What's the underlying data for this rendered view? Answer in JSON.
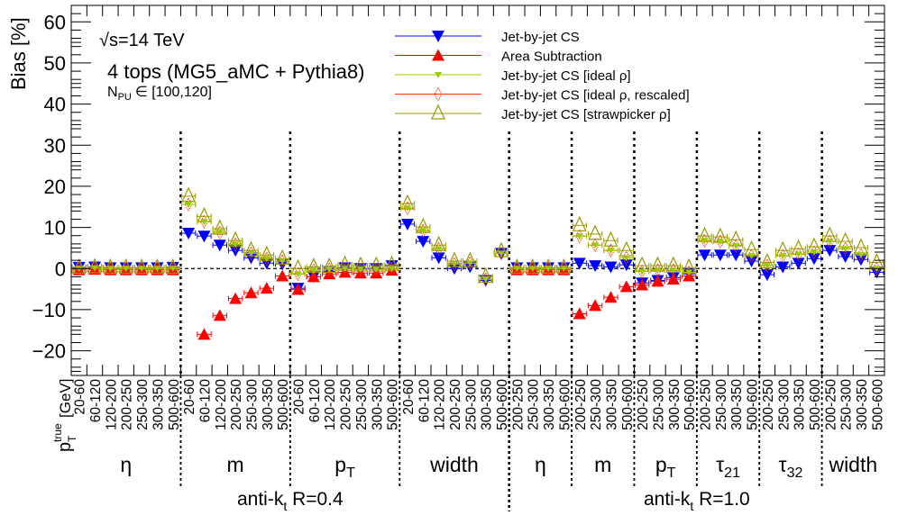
{
  "chart_data": {
    "type": "scatter",
    "title": "",
    "ylabel": "Bias [%]",
    "xlabel_main": "p",
    "xlabel_sub": "T",
    "xlabel_sup": "true",
    "xlabel_unit": "[GeV]",
    "ylim": [
      -26,
      64
    ],
    "yticks": [
      -20,
      -10,
      0,
      10,
      20,
      30,
      40,
      50,
      60
    ],
    "ytick_labels": [
      "−20",
      "−10",
      "0",
      "10",
      "20",
      "30",
      "40",
      "50",
      "60"
    ],
    "grid": false,
    "legend_position": "top-center",
    "annotations": {
      "energy_prefix": "√",
      "energy": "s=14 TeV",
      "process": "4 tops (MG5_aMC + Pythia8)",
      "pileup_N": "N",
      "pileup_sub": "PU",
      "pileup_range": "∈ [100,120]"
    },
    "categories": [
      "20-60",
      "60-120",
      "120-200",
      "200-250",
      "250-300",
      "300-350",
      "500-600",
      "20-60",
      "60-120",
      "120-200",
      "200-250",
      "250-300",
      "300-350",
      "500-600",
      "20-60",
      "60-120",
      "120-200",
      "200-250",
      "250-300",
      "300-350",
      "500-600",
      "20-60",
      "60-120",
      "120-200",
      "200-250",
      "250-300",
      "300-350",
      "500-600",
      "200-250",
      "250-300",
      "300-350",
      "500-600",
      "200-250",
      "250-300",
      "300-350",
      "500-600",
      "200-250",
      "250-300",
      "300-350",
      "500-600",
      "200-250",
      "250-300",
      "300-350",
      "500-600",
      "200-250",
      "250-300",
      "300-350",
      "500-600",
      "200-250",
      "250-300",
      "300-350",
      "500-600"
    ],
    "groups": [
      {
        "label": "η",
        "sub": "",
        "start": 0,
        "n": 7
      },
      {
        "label": "m",
        "sub": "",
        "start": 7,
        "n": 7
      },
      {
        "label": "p",
        "sub": "T",
        "start": 14,
        "n": 7
      },
      {
        "label": "width",
        "sub": "",
        "start": 21,
        "n": 7
      },
      {
        "label": "η",
        "sub": "",
        "start": 28,
        "n": 4
      },
      {
        "label": "m",
        "sub": "",
        "start": 32,
        "n": 4
      },
      {
        "label": "p",
        "sub": "T",
        "start": 36,
        "n": 4
      },
      {
        "label": "τ",
        "sub": "21",
        "start": 40,
        "n": 4
      },
      {
        "label": "τ",
        "sub": "32",
        "start": 44,
        "n": 4
      },
      {
        "label": "width",
        "sub": "",
        "start": 48,
        "n": 4
      }
    ],
    "jet_collections": [
      {
        "label": "anti-k",
        "sub": "t",
        "rest": " R=0.4",
        "start": 0,
        "n": 28
      },
      {
        "label": "anti-k",
        "sub": "t",
        "rest": " R=1.0",
        "start": 28,
        "n": 24
      }
    ],
    "series": [
      {
        "name": "Jet-by-jet CS",
        "color": "#0000ff",
        "marker": "triangle-down-filled",
        "values": [
          0.3,
          0.4,
          0.2,
          0.2,
          0.2,
          0.2,
          0.3,
          8.6,
          7.9,
          5.7,
          4.4,
          2.6,
          1.3,
          1.1,
          -4.8,
          -2.0,
          -0.7,
          0.2,
          0.0,
          0.0,
          0.7,
          10.8,
          6.6,
          2.6,
          0.0,
          0.4,
          -2.9,
          3.7,
          0.2,
          0.2,
          0.2,
          0.2,
          1.3,
          0.7,
          0.4,
          0.9,
          -3.5,
          -2.9,
          -2.2,
          -1.3,
          3.3,
          3.3,
          3.3,
          1.8,
          -1.5,
          0.4,
          1.3,
          2.4,
          4.4,
          2.9,
          2.2,
          -0.9
        ]
      },
      {
        "name": "Area Subtraction",
        "color": "#ff0000",
        "marker": "triangle-up-filled",
        "values": [
          -0.3,
          -0.2,
          -0.3,
          -0.3,
          -0.3,
          -0.3,
          -0.3,
          null,
          -16.0,
          -11.4,
          -7.3,
          -5.9,
          -4.8,
          -1.8,
          -5.1,
          -2.0,
          -1.3,
          -0.9,
          -1.1,
          -1.1,
          -0.4,
          null,
          null,
          null,
          null,
          null,
          null,
          null,
          -0.3,
          -0.3,
          -0.3,
          -0.3,
          -11.0,
          -9.0,
          -7.0,
          -4.4,
          -4.0,
          -3.1,
          -2.6,
          -1.8,
          null,
          null,
          null,
          null,
          null,
          null,
          null,
          null,
          null,
          null,
          null,
          null
        ]
      },
      {
        "name": "Jet-by-jet CS [ideal   ρ]",
        "color": "#99cc00",
        "marker": "triangle-down-small",
        "values": [
          0.0,
          0.1,
          0.0,
          0.0,
          0.0,
          0.0,
          0.0,
          15.6,
          11.4,
          8.8,
          5.9,
          3.7,
          2.4,
          1.8,
          -1.3,
          -0.4,
          -0.2,
          0.0,
          -0.2,
          -0.2,
          0.0,
          14.7,
          9.2,
          4.8,
          1.1,
          1.3,
          -2.6,
          3.7,
          0.0,
          0.0,
          0.0,
          0.0,
          7.9,
          5.7,
          4.4,
          2.6,
          -0.7,
          -0.4,
          -0.4,
          -0.9,
          6.8,
          6.6,
          5.5,
          3.1,
          0.7,
          3.1,
          3.5,
          4.0,
          6.6,
          4.8,
          3.3,
          0.0
        ]
      },
      {
        "name": "Jet-by-jet CS [ideal   ρ, rescaled]",
        "color": "#ff3300",
        "marker": "diamond-open",
        "values": [
          0.0,
          0.1,
          0.0,
          0.0,
          0.0,
          0.0,
          0.0,
          15.6,
          11.4,
          8.8,
          5.9,
          3.7,
          2.4,
          1.8,
          -1.3,
          -0.4,
          -0.2,
          0.0,
          -0.2,
          -0.2,
          0.0,
          14.7,
          9.2,
          4.8,
          1.1,
          1.3,
          -2.6,
          3.7,
          0.0,
          0.0,
          0.0,
          0.0,
          7.9,
          5.7,
          4.4,
          2.6,
          -0.7,
          -0.4,
          -0.4,
          -0.9,
          6.8,
          6.6,
          5.5,
          3.1,
          0.7,
          3.1,
          3.5,
          4.0,
          6.6,
          4.8,
          3.3,
          0.0
        ]
      },
      {
        "name": "Jet-by-jet CS [strawpicker   ρ]",
        "color": "#999900",
        "marker": "triangle-up-open",
        "values": [
          0.2,
          0.3,
          0.2,
          0.2,
          0.2,
          0.2,
          0.2,
          17.6,
          12.7,
          9.7,
          6.8,
          4.4,
          3.3,
          2.4,
          0.0,
          0.4,
          0.4,
          0.9,
          0.7,
          0.7,
          0.9,
          15.8,
          10.1,
          5.7,
          1.8,
          1.8,
          -2.0,
          4.2,
          0.2,
          0.2,
          0.2,
          0.2,
          10.5,
          8.4,
          6.8,
          4.4,
          0.7,
          0.7,
          0.7,
          0.2,
          7.9,
          7.7,
          7.0,
          4.6,
          1.5,
          4.4,
          4.8,
          5.3,
          7.9,
          6.6,
          5.1,
          1.5
        ]
      }
    ]
  }
}
